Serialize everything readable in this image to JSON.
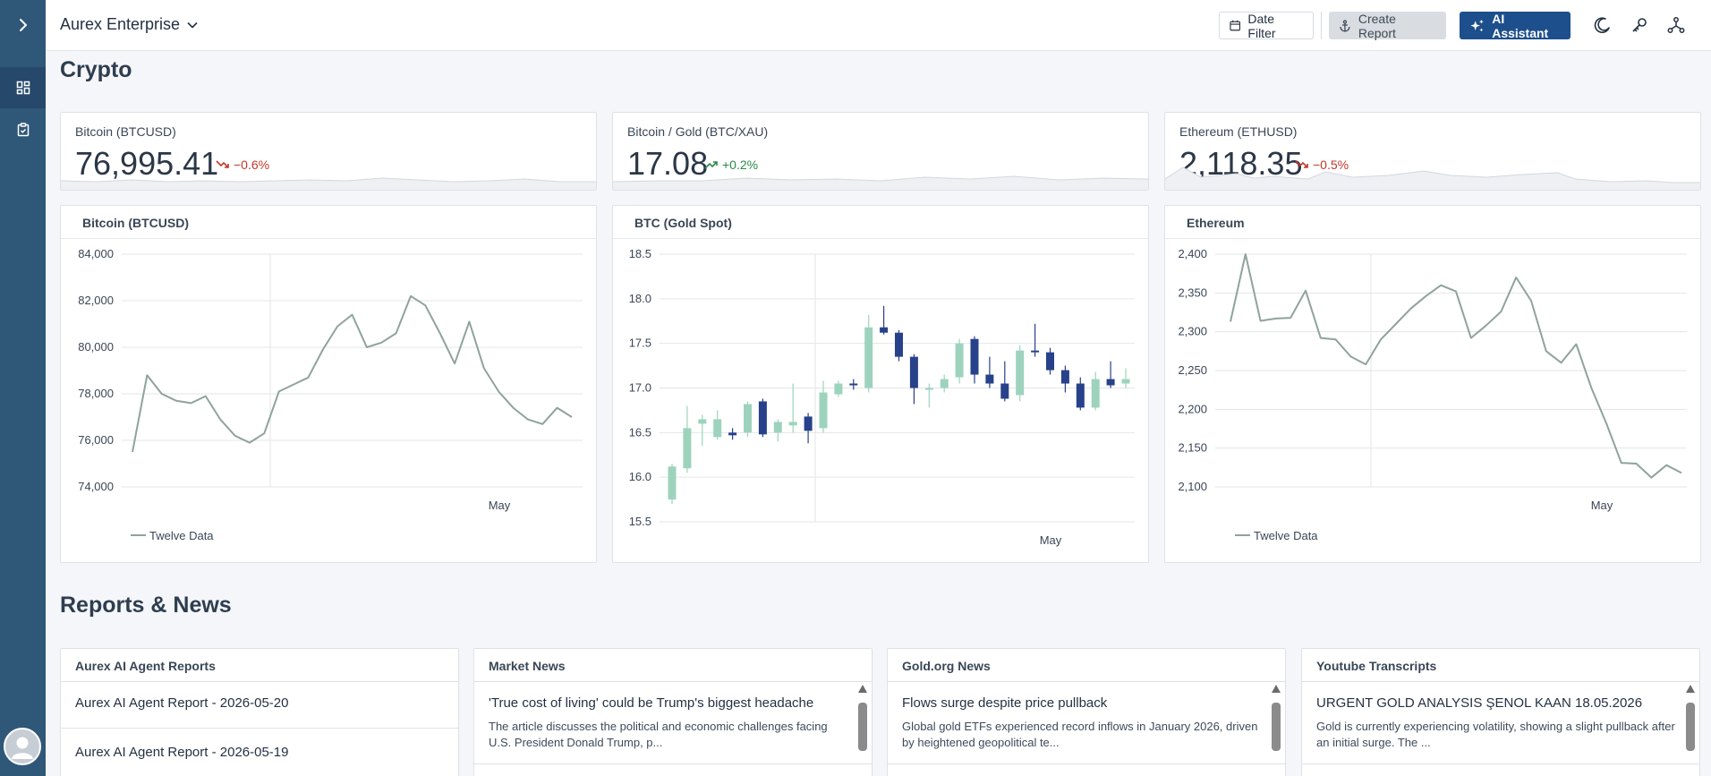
{
  "app": {
    "title": "Aurex Enterprise"
  },
  "sidebar": {
    "toggle_icon": "chevron-right-icon",
    "items": [
      {
        "name": "dashboard",
        "icon": "grid-icon",
        "active": true
      },
      {
        "name": "reports",
        "icon": "clipboard-icon",
        "active": false
      }
    ],
    "avatar_icon": "user-icon"
  },
  "toolbar": {
    "date_filter": "Date Filter",
    "create_report": "Create Report",
    "ai_assistant": "AI Assistant",
    "icons": [
      "moon-icon",
      "key-icon",
      "network-icon"
    ]
  },
  "sections": {
    "crypto": "Crypto",
    "news": "Reports & News"
  },
  "tickers": [
    {
      "label": "Bitcoin (BTCUSD)",
      "value": "76,995.41",
      "change": "−0.6%",
      "direction": "down"
    },
    {
      "label": "Bitcoin / Gold (BTC/XAU)",
      "value": "17.08",
      "change": "+0.2%",
      "direction": "up"
    },
    {
      "label": "Ethereum (ETHUSD)",
      "value": "2,118.35",
      "change": "−0.5%",
      "direction": "down"
    }
  ],
  "charts": [
    {
      "title": "Bitcoin (BTCUSD)",
      "chart_data": {
        "type": "line",
        "y_ticks": [
          "84,000",
          "82,000",
          "80,000",
          "78,000",
          "76,000",
          "74,000"
        ],
        "ylim": [
          74000,
          84000
        ],
        "x_label": "May",
        "legend": "Twelve Data",
        "values": [
          75500,
          78800,
          78000,
          77700,
          77600,
          77900,
          76900,
          76200,
          75900,
          76300,
          78100,
          78400,
          78700,
          79900,
          80900,
          81400,
          80000,
          80200,
          80600,
          82200,
          81800,
          80600,
          79300,
          81100,
          79100,
          78100,
          77400,
          76900,
          76700,
          77400,
          77000
        ]
      }
    },
    {
      "title": "BTC (Gold Spot)",
      "chart_data": {
        "type": "candlestick",
        "y_ticks": [
          "18.5",
          "18.0",
          "17.5",
          "17.0",
          "16.5",
          "16.0",
          "15.5"
        ],
        "ylim": [
          15.5,
          18.5
        ],
        "x_label": "May",
        "candles": [
          {
            "o": 15.75,
            "h": 16.15,
            "l": 15.7,
            "c": 16.12
          },
          {
            "o": 16.1,
            "h": 16.8,
            "l": 16.05,
            "c": 16.55
          },
          {
            "o": 16.6,
            "h": 16.7,
            "l": 16.35,
            "c": 16.65
          },
          {
            "o": 16.45,
            "h": 16.75,
            "l": 16.42,
            "c": 16.65
          },
          {
            "o": 16.5,
            "h": 16.55,
            "l": 16.42,
            "c": 16.47
          },
          {
            "o": 16.5,
            "h": 16.85,
            "l": 16.45,
            "c": 16.82
          },
          {
            "o": 16.85,
            "h": 16.88,
            "l": 16.45,
            "c": 16.48
          },
          {
            "o": 16.5,
            "h": 16.65,
            "l": 16.4,
            "c": 16.62
          },
          {
            "o": 16.58,
            "h": 17.05,
            "l": 16.5,
            "c": 16.62
          },
          {
            "o": 16.68,
            "h": 16.72,
            "l": 16.38,
            "c": 16.52
          },
          {
            "o": 16.55,
            "h": 17.08,
            "l": 16.5,
            "c": 16.95
          },
          {
            "o": 16.93,
            "h": 17.08,
            "l": 16.9,
            "c": 17.05
          },
          {
            "o": 17.05,
            "h": 17.1,
            "l": 16.98,
            "c": 17.03
          },
          {
            "o": 17.0,
            "h": 17.82,
            "l": 16.95,
            "c": 17.68
          },
          {
            "o": 17.68,
            "h": 17.92,
            "l": 17.6,
            "c": 17.62
          },
          {
            "o": 17.62,
            "h": 17.65,
            "l": 17.3,
            "c": 17.35
          },
          {
            "o": 17.35,
            "h": 17.38,
            "l": 16.82,
            "c": 17.0
          },
          {
            "o": 17.0,
            "h": 17.05,
            "l": 16.78,
            "c": 17.0
          },
          {
            "o": 17.0,
            "h": 17.15,
            "l": 16.95,
            "c": 17.1
          },
          {
            "o": 17.12,
            "h": 17.55,
            "l": 17.05,
            "c": 17.5
          },
          {
            "o": 17.55,
            "h": 17.58,
            "l": 17.05,
            "c": 17.15
          },
          {
            "o": 17.15,
            "h": 17.35,
            "l": 17.0,
            "c": 17.05
          },
          {
            "o": 17.05,
            "h": 17.3,
            "l": 16.85,
            "c": 16.88
          },
          {
            "o": 16.92,
            "h": 17.48,
            "l": 16.85,
            "c": 17.42
          },
          {
            "o": 17.42,
            "h": 17.72,
            "l": 17.35,
            "c": 17.4
          },
          {
            "o": 17.4,
            "h": 17.45,
            "l": 17.15,
            "c": 17.2
          },
          {
            "o": 17.2,
            "h": 17.25,
            "l": 16.95,
            "c": 17.05
          },
          {
            "o": 17.05,
            "h": 17.12,
            "l": 16.75,
            "c": 16.78
          },
          {
            "o": 16.78,
            "h": 17.18,
            "l": 16.75,
            "c": 17.1
          },
          {
            "o": 17.1,
            "h": 17.3,
            "l": 17.0,
            "c": 17.03
          },
          {
            "o": 17.05,
            "h": 17.22,
            "l": 17.0,
            "c": 17.1
          }
        ]
      }
    },
    {
      "title": "Ethereum",
      "chart_data": {
        "type": "line",
        "y_ticks": [
          "2,400",
          "2,350",
          "2,300",
          "2,250",
          "2,200",
          "2,150",
          "2,100"
        ],
        "ylim": [
          2100,
          2400
        ],
        "x_label": "May",
        "legend": "Twelve Data",
        "values": [
          2313,
          2400,
          2314,
          2317,
          2318,
          2353,
          2292,
          2290,
          2268,
          2258,
          2290,
          2310,
          2330,
          2346,
          2360,
          2352,
          2292,
          2308,
          2326,
          2370,
          2340,
          2275,
          2260,
          2284,
          2228,
          2182,
          2131,
          2130,
          2112,
          2128,
          2118
        ]
      }
    }
  ],
  "news": {
    "reports": {
      "title": "Aurex AI Agent Reports",
      "items": [
        "Aurex AI Agent Report - 2026-05-20",
        "Aurex AI Agent Report - 2026-05-19"
      ]
    },
    "market": {
      "title": "Market News",
      "headline": "'True cost of living' could be Trump's biggest headache",
      "summary": "The article discusses the political and economic challenges facing U.S. President Donald Trump, p..."
    },
    "gold": {
      "title": "Gold.org News",
      "headline": "Flows surge despite price pullback",
      "summary": "Global gold ETFs experienced record inflows in January 2026, driven by heightened geopolitical te..."
    },
    "youtube": {
      "title": "Youtube Transcripts",
      "headline": "URGENT GOLD ANALYSIS ŞENOL KAAN 18.05.2026",
      "summary": "Gold is currently experiencing volatility, showing a slight pullback after an initial surge. The ..."
    }
  },
  "colors": {
    "sidebar": "#2f5778",
    "accent": "#1d4f8c",
    "line": "#8fa39c",
    "candle_down": "#27418a",
    "candle_up": "#9dd3bd",
    "negative": "#c0392b",
    "positive": "#2a8a49"
  }
}
